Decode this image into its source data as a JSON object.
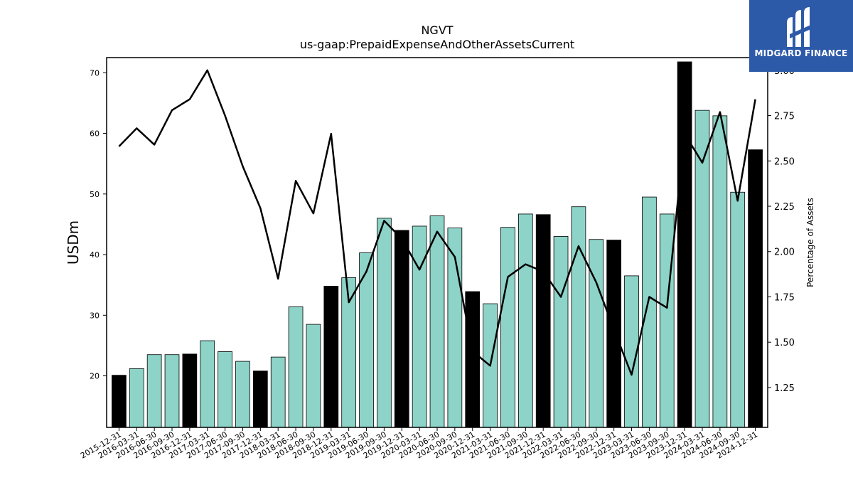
{
  "chart_data": {
    "type": "bar",
    "title": "NGVT",
    "subtitle": "us-gaap:PrepaidExpenseAndOtherAssetsCurrent",
    "ylabel": "USDm",
    "y2label": "Percentage of Assets",
    "ylim": [
      11.5,
      72.5
    ],
    "y2lim": [
      1.03,
      3.07
    ],
    "yticks": [
      20,
      30,
      40,
      50,
      60,
      70
    ],
    "y2ticks": [
      "1.25",
      "1.50",
      "1.75",
      "2.00",
      "2.25",
      "2.50",
      "2.75",
      "3.00"
    ],
    "categories": [
      "2015-12-31",
      "2016-03-31",
      "2016-06-30",
      "2016-09-30",
      "2016-12-31",
      "2017-03-31",
      "2017-06-30",
      "2017-09-30",
      "2017-12-31",
      "2018-03-31",
      "2018-06-30",
      "2018-09-30",
      "2018-12-31",
      "2019-03-31",
      "2019-06-30",
      "2019-09-30",
      "2019-12-31",
      "2020-03-31",
      "2020-06-30",
      "2020-09-30",
      "2020-12-31",
      "2021-03-31",
      "2021-06-30",
      "2021-09-30",
      "2021-12-31",
      "2022-03-31",
      "2022-06-30",
      "2022-09-30",
      "2022-12-31",
      "2023-03-31",
      "2023-06-30",
      "2023-09-30",
      "2023-12-31",
      "2024-03-31",
      "2024-06-30",
      "2024-09-30",
      "2024-12-31"
    ],
    "series": [
      {
        "kind": "bar",
        "values": [
          20.1,
          21.2,
          23.5,
          23.5,
          23.6,
          25.8,
          24.0,
          22.4,
          20.8,
          23.1,
          31.4,
          28.5,
          34.8,
          36.2,
          40.3,
          46.0,
          44.0,
          44.7,
          46.4,
          44.4,
          33.9,
          31.9,
          44.5,
          46.7,
          46.6,
          43.0,
          47.9,
          42.5,
          42.4,
          36.5,
          49.5,
          46.7,
          71.8,
          63.8,
          62.9,
          50.3,
          57.3
        ]
      },
      {
        "kind": "line",
        "values": [
          2.58,
          2.68,
          2.59,
          2.78,
          2.84,
          3.0,
          2.75,
          2.47,
          2.24,
          1.85,
          2.39,
          2.21,
          2.65,
          1.72,
          1.89,
          2.17,
          2.07,
          1.9,
          2.11,
          1.97,
          1.45,
          1.37,
          1.86,
          1.93,
          1.89,
          1.75,
          2.03,
          1.83,
          1.57,
          1.32,
          1.75,
          1.69,
          2.65,
          2.49,
          2.77,
          2.28,
          2.84
        ]
      }
    ],
    "colors": {
      "bar_quarter": "#8dd3c7",
      "bar_year_end": "#000000",
      "line": "#000000",
      "edge": "#000000"
    },
    "grid": false,
    "legend": "none"
  },
  "logo": {
    "text": "MIDGARD FINANCE",
    "icon": "midgard-logo-icon"
  }
}
